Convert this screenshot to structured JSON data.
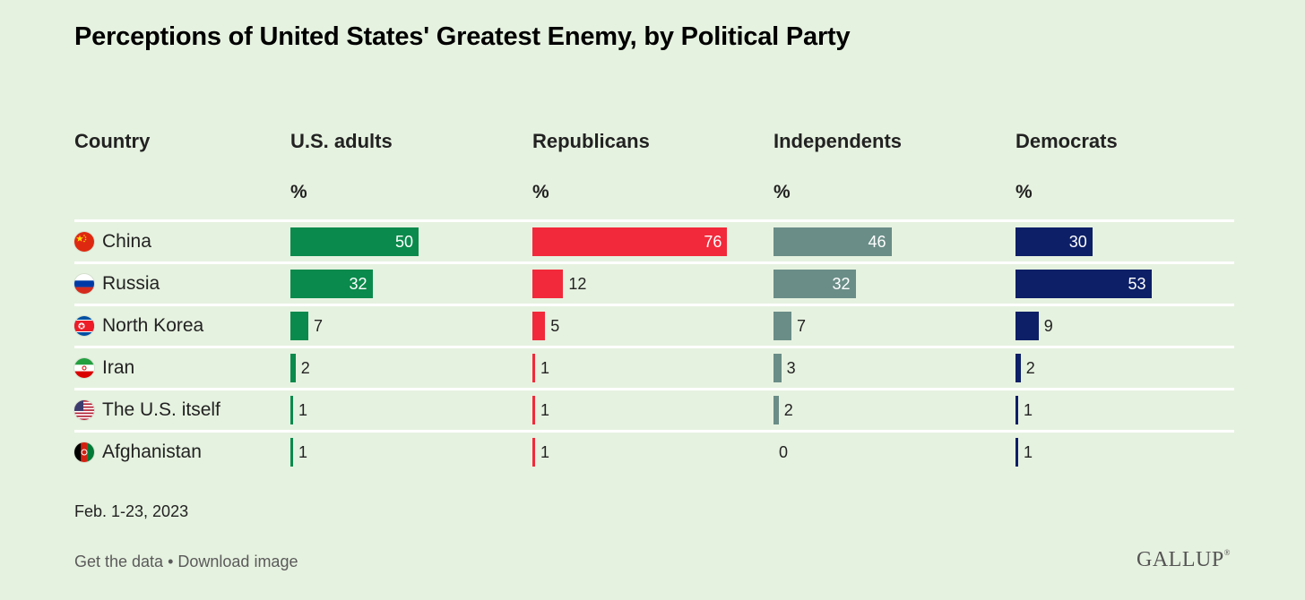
{
  "title": "Perceptions of United States' Greatest Enemy, by Political Party",
  "headers": {
    "country": "Country",
    "groups": [
      "U.S. adults",
      "Republicans",
      "Independents",
      "Democrats"
    ],
    "unit": "%"
  },
  "colors": {
    "U.S. adults": "#0a8a4c",
    "Republicans": "#f2293a",
    "Independents": "#6a8d87",
    "Democrats": "#0d1f66",
    "background": "#e6f2e0"
  },
  "countries": [
    {
      "name": "China",
      "flag": "china-flag"
    },
    {
      "name": "Russia",
      "flag": "russia-flag"
    },
    {
      "name": "North Korea",
      "flag": "north-korea-flag"
    },
    {
      "name": "Iran",
      "flag": "iran-flag"
    },
    {
      "name": "The U.S. itself",
      "flag": "usa-flag"
    },
    {
      "name": "Afghanistan",
      "flag": "afghanistan-flag"
    }
  ],
  "chart_data": {
    "type": "bar",
    "orientation": "horizontal",
    "categories": [
      "China",
      "Russia",
      "North Korea",
      "Iran",
      "The U.S. itself",
      "Afghanistan"
    ],
    "series": [
      {
        "name": "U.S. adults",
        "values": [
          50,
          32,
          7,
          2,
          1,
          1
        ]
      },
      {
        "name": "Republicans",
        "values": [
          76,
          12,
          5,
          1,
          1,
          1
        ]
      },
      {
        "name": "Independents",
        "values": [
          46,
          32,
          7,
          3,
          2,
          0
        ]
      },
      {
        "name": "Democrats",
        "values": [
          30,
          53,
          9,
          2,
          1,
          1
        ]
      }
    ],
    "unit": "%",
    "xlim": [
      0,
      100
    ]
  },
  "footer": {
    "date": "Feb. 1-23, 2023",
    "get_data": "Get the data",
    "separator": " • ",
    "download": "Download image",
    "logo": "GALLUP"
  }
}
